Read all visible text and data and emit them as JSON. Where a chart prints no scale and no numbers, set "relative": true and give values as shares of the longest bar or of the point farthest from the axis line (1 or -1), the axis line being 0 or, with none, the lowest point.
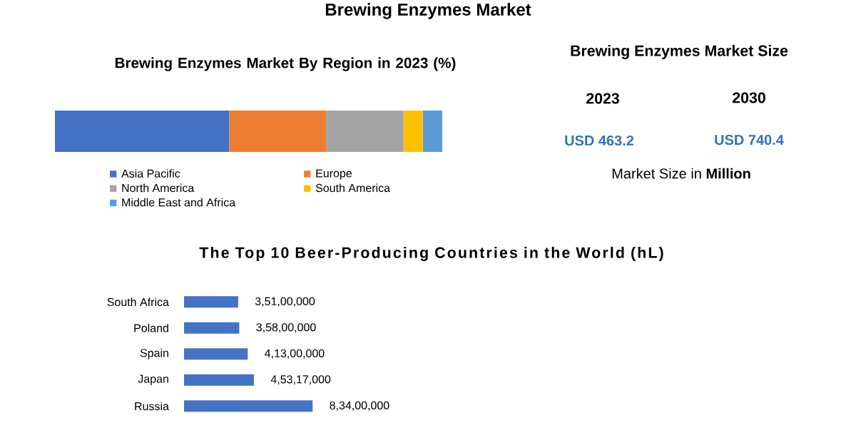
{
  "chart_data": [
    {
      "type": "other",
      "title": "Brewing Enzymes Market"
    },
    {
      "type": "bar",
      "title": "Brewing Enzymes Market By Region in 2023 (%)",
      "orientation": "horizontal",
      "stacked": true,
      "relative": true,
      "legend": "bottom",
      "categories": [
        null
      ],
      "series": [
        {
          "name": "Asia Pacific",
          "color": "#4472c4",
          "values": [
            0.45
          ]
        },
        {
          "name": "Europe",
          "color": "#ed7d31",
          "values": [
            0.25
          ]
        },
        {
          "name": "North America",
          "color": "#a5a5a5",
          "values": [
            0.2
          ]
        },
        {
          "name": "South America",
          "color": "#ffc000",
          "values": [
            0.05
          ]
        },
        {
          "name": "Middle East and Africa",
          "color": "#5b9bd5",
          "values": [
            0.05
          ]
        }
      ]
    },
    {
      "type": "other",
      "title": "Brewing Enzymes Market Size",
      "categories": [
        "2023",
        "2030"
      ],
      "values": [
        463.2,
        740.4
      ],
      "value_labels": [
        "USD 463.2",
        "USD 740.4"
      ],
      "color": "#2e75b6",
      "annotations": [
        "Market Size in **Million**"
      ]
    },
    {
      "type": "bar",
      "title": "The Top 10 Beer-Producing Countries in the World (hL)",
      "orientation": "horizontal",
      "tick_labels": "y",
      "color": "#4472c4",
      "categories": [
        "South Africa",
        "Poland",
        "Spain",
        "Japan",
        "Russia"
      ],
      "values": [
        35100000,
        35800000,
        41300000,
        45317000,
        83400000
      ],
      "value_labels": [
        "3,51,00,000",
        "3,58,00,000",
        "4,13,00,000",
        "4,53,17,000",
        "8,34,00,000"
      ]
    }
  ]
}
